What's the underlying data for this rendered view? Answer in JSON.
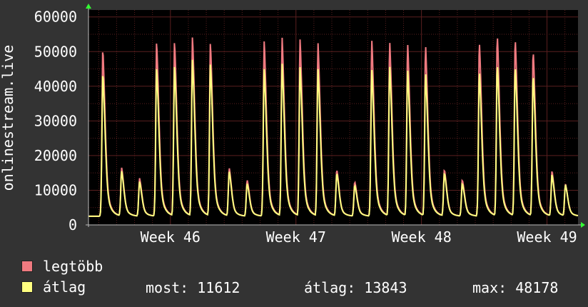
{
  "chart_data": {
    "type": "line",
    "ylabel": "onlinestream.live",
    "ylim": [
      0,
      62000
    ],
    "yticks": [
      0,
      10000,
      20000,
      30000,
      40000,
      50000,
      60000
    ],
    "xticks": [
      "Week 46",
      "Week 47",
      "Week 48",
      "Week 49"
    ],
    "grid": true,
    "colors": {
      "background": "#333333",
      "plot_background": "#000000",
      "max_series": "#f07a80",
      "avg_series": "#ffff80",
      "grid": "#5a1f1f",
      "axis_arrow": "#33ff33"
    },
    "series": [
      {
        "name": "legtöbb",
        "peaks": [
          51000,
          16500,
          13500,
          53000,
          53000,
          54500,
          52500,
          16500,
          13000,
          53000,
          54000,
          53500,
          52500,
          16000,
          12500,
          53500,
          53000,
          52500,
          52000,
          16000,
          13000,
          53000,
          55000,
          54000,
          50500,
          15500,
          11800
        ],
        "peak_days": [
          0.8,
          1.85,
          2.85,
          3.8,
          4.8,
          5.8,
          6.8,
          7.85,
          8.85,
          9.8,
          10.8,
          11.8,
          12.8,
          13.85,
          14.85,
          15.8,
          16.8,
          17.8,
          18.8,
          19.85,
          20.85,
          21.8,
          22.8,
          23.8,
          24.8,
          25.85,
          26.6
        ]
      },
      {
        "name": "átlag",
        "peaks": [
          44000,
          15500,
          12500,
          45500,
          46000,
          48000,
          46500,
          15500,
          12000,
          45000,
          46500,
          45500,
          45000,
          15000,
          11500,
          45000,
          46000,
          45000,
          44000,
          15000,
          12000,
          44500,
          46500,
          46000,
          43500,
          14500,
          11612
        ],
        "peak_days": [
          0.8,
          1.85,
          2.85,
          3.8,
          4.8,
          5.8,
          6.8,
          7.85,
          8.85,
          9.8,
          10.8,
          11.8,
          12.8,
          13.85,
          14.85,
          15.8,
          16.8,
          17.8,
          18.8,
          19.85,
          20.85,
          21.8,
          22.8,
          23.8,
          24.8,
          25.85,
          26.6
        ]
      }
    ]
  },
  "legend": {
    "max_label": "legtöbb",
    "avg_label": "átlag"
  },
  "stats": {
    "current": "most: 11612",
    "average": "átlag: 13843",
    "maximum": "max: 48178"
  }
}
